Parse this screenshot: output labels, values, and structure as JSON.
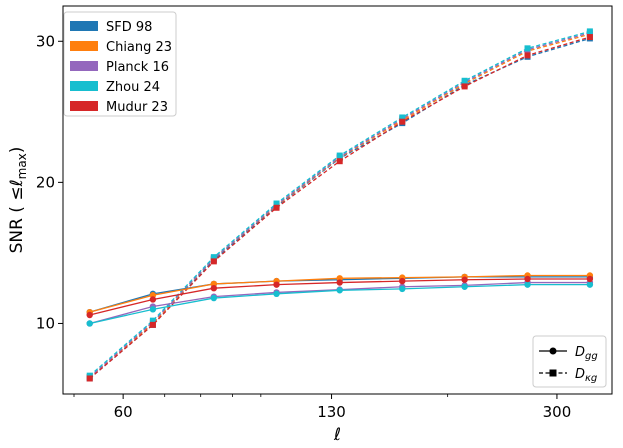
{
  "chart_data": {
    "type": "line",
    "xlabel": "ℓ",
    "ylabel": "SNR ( ≤ℓ_max)",
    "x_scale": "log",
    "xlim": [
      48,
      368
    ],
    "ylim": [
      5,
      32.5
    ],
    "x_ticks": [
      60,
      130,
      300
    ],
    "y_ticks": [
      10,
      20,
      30
    ],
    "x": [
      53,
      67,
      84,
      106,
      134,
      169,
      213,
      269,
      339
    ],
    "grid": false,
    "series": [
      {
        "name": "SFD 98",
        "color": "#1f77b4",
        "Dgg": [
          10.8,
          12.1,
          12.8,
          13.0,
          13.1,
          13.2,
          13.3,
          13.3,
          13.3
        ],
        "Dkg": [
          6.1,
          9.9,
          14.5,
          18.3,
          21.7,
          24.2,
          26.9,
          28.9,
          30.2
        ]
      },
      {
        "name": "Chiang 23",
        "color": "#ff7f0e",
        "Dgg": [
          10.8,
          12.0,
          12.8,
          13.0,
          13.2,
          13.25,
          13.3,
          13.4,
          13.4
        ],
        "Dkg": [
          6.2,
          10.0,
          14.6,
          18.35,
          21.75,
          24.4,
          27.0,
          29.3,
          30.5
        ]
      },
      {
        "name": "Planck 16",
        "color": "#9467bd",
        "Dgg": [
          10.0,
          11.2,
          11.9,
          12.2,
          12.4,
          12.6,
          12.7,
          12.9,
          12.9
        ],
        "Dkg": [
          6.2,
          10.1,
          14.6,
          18.4,
          21.8,
          24.5,
          27.1,
          29.4,
          30.6
        ]
      },
      {
        "name": "Zhou 24",
        "color": "#17becf",
        "Dgg": [
          10.0,
          11.0,
          11.8,
          12.1,
          12.35,
          12.45,
          12.6,
          12.75,
          12.75
        ],
        "Dkg": [
          6.3,
          10.2,
          14.7,
          18.5,
          21.9,
          24.6,
          27.2,
          29.5,
          30.7
        ]
      },
      {
        "name": "Mudur 23",
        "color": "#d62728",
        "Dgg": [
          10.6,
          11.7,
          12.5,
          12.75,
          12.9,
          13.0,
          13.1,
          13.15,
          13.15
        ],
        "Dkg": [
          6.1,
          9.9,
          14.4,
          18.2,
          21.5,
          24.3,
          26.8,
          29.0,
          30.3
        ]
      }
    ],
    "styles": [
      {
        "label": "D",
        "sub": "gg",
        "line": "solid",
        "marker": "circle"
      },
      {
        "label": "D",
        "sub": "κg",
        "line": "dashed",
        "marker": "square"
      }
    ],
    "legend_position": "upper-left",
    "style_legend_position": "lower-right"
  }
}
